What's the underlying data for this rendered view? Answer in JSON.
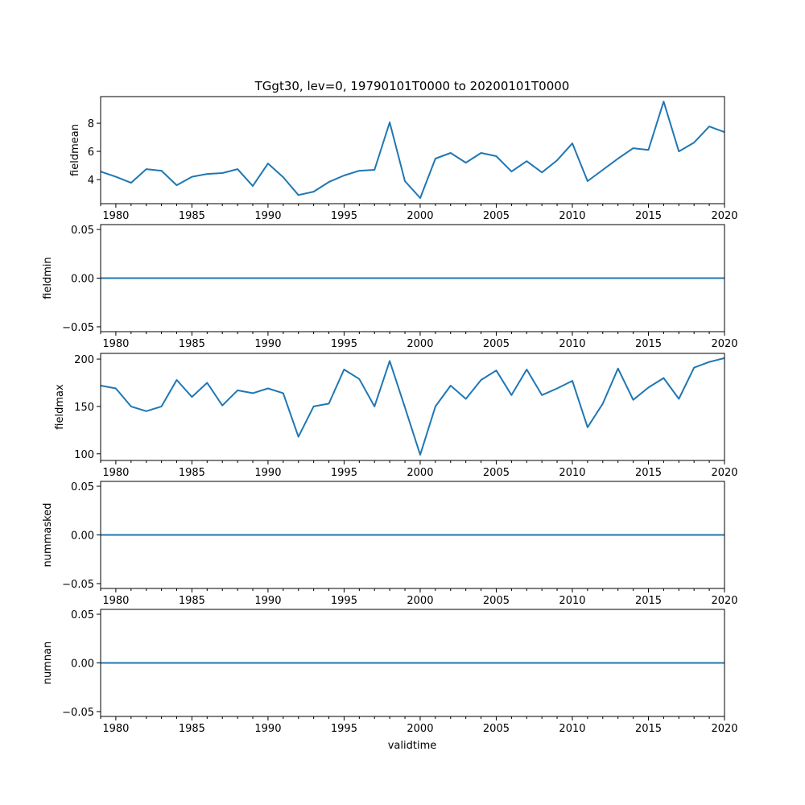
{
  "chart_data": {
    "type": "line",
    "title": "TGgt30, lev=0, 19790101T0000 to 20200101T0000",
    "xlabel": "validtime",
    "xlim": [
      1979,
      2020
    ],
    "xticks": [
      1980,
      1985,
      1990,
      1995,
      2000,
      2005,
      2010,
      2015,
      2020
    ],
    "color": "#1f77b4",
    "x": [
      1979,
      1980,
      1981,
      1982,
      1983,
      1984,
      1985,
      1986,
      1987,
      1988,
      1989,
      1990,
      1991,
      1992,
      1993,
      1994,
      1995,
      1996,
      1997,
      1998,
      1999,
      2000,
      2001,
      2002,
      2003,
      2004,
      2005,
      2006,
      2007,
      2008,
      2009,
      2010,
      2011,
      2012,
      2013,
      2014,
      2015,
      2016,
      2017,
      2018,
      2019,
      2020
    ],
    "panels": [
      {
        "ylabel": "fieldmean",
        "ylim": [
          2.29,
          9.89
        ],
        "yticks": [
          4,
          6,
          8
        ],
        "ytick_labels": [
          "4",
          "6",
          "8"
        ],
        "values": [
          4.57,
          4.2,
          3.77,
          4.74,
          4.63,
          3.6,
          4.2,
          4.4,
          4.46,
          4.74,
          3.54,
          5.14,
          4.17,
          2.9,
          3.14,
          3.83,
          4.29,
          4.63,
          4.69,
          8.06,
          3.89,
          2.69,
          5.49,
          5.89,
          5.2,
          5.89,
          5.66,
          4.57,
          5.31,
          4.51,
          5.37,
          6.57,
          3.89,
          4.69,
          5.49,
          6.23,
          6.11,
          9.54,
          6.0,
          6.63,
          7.77,
          7.37
        ]
      },
      {
        "ylabel": "fieldmin",
        "ylim": [
          -0.055,
          0.055
        ],
        "yticks": [
          -0.05,
          0,
          0.05
        ],
        "ytick_labels": [
          "−0.05",
          "0.00",
          "0.05"
        ],
        "values": [
          0,
          0,
          0,
          0,
          0,
          0,
          0,
          0,
          0,
          0,
          0,
          0,
          0,
          0,
          0,
          0,
          0,
          0,
          0,
          0,
          0,
          0,
          0,
          0,
          0,
          0,
          0,
          0,
          0,
          0,
          0,
          0,
          0,
          0,
          0,
          0,
          0,
          0,
          0,
          0,
          0,
          0
        ]
      },
      {
        "ylabel": "fieldmax",
        "ylim": [
          93,
          206
        ],
        "yticks": [
          100,
          150,
          200
        ],
        "ytick_labels": [
          "100",
          "150",
          "200"
        ],
        "values": [
          172,
          169,
          150,
          145,
          150,
          178,
          160,
          175,
          151,
          167,
          164,
          169,
          164,
          118,
          150,
          153,
          189,
          179,
          150,
          198,
          149,
          99,
          150,
          172,
          158,
          178,
          188,
          162,
          189,
          162,
          169,
          177,
          128,
          153,
          190,
          157,
          170,
          180,
          158,
          191,
          197,
          201
        ]
      },
      {
        "ylabel": "nummasked",
        "ylim": [
          -0.055,
          0.055
        ],
        "yticks": [
          -0.05,
          0,
          0.05
        ],
        "ytick_labels": [
          "−0.05",
          "0.00",
          "0.05"
        ],
        "values": [
          0,
          0,
          0,
          0,
          0,
          0,
          0,
          0,
          0,
          0,
          0,
          0,
          0,
          0,
          0,
          0,
          0,
          0,
          0,
          0,
          0,
          0,
          0,
          0,
          0,
          0,
          0,
          0,
          0,
          0,
          0,
          0,
          0,
          0,
          0,
          0,
          0,
          0,
          0,
          0,
          0,
          0
        ]
      },
      {
        "ylabel": "numnan",
        "ylim": [
          -0.055,
          0.055
        ],
        "yticks": [
          -0.05,
          0,
          0.05
        ],
        "ytick_labels": [
          "−0.05",
          "0.00",
          "0.05"
        ],
        "values": [
          0,
          0,
          0,
          0,
          0,
          0,
          0,
          0,
          0,
          0,
          0,
          0,
          0,
          0,
          0,
          0,
          0,
          0,
          0,
          0,
          0,
          0,
          0,
          0,
          0,
          0,
          0,
          0,
          0,
          0,
          0,
          0,
          0,
          0,
          0,
          0,
          0,
          0,
          0,
          0,
          0,
          0
        ]
      }
    ]
  }
}
